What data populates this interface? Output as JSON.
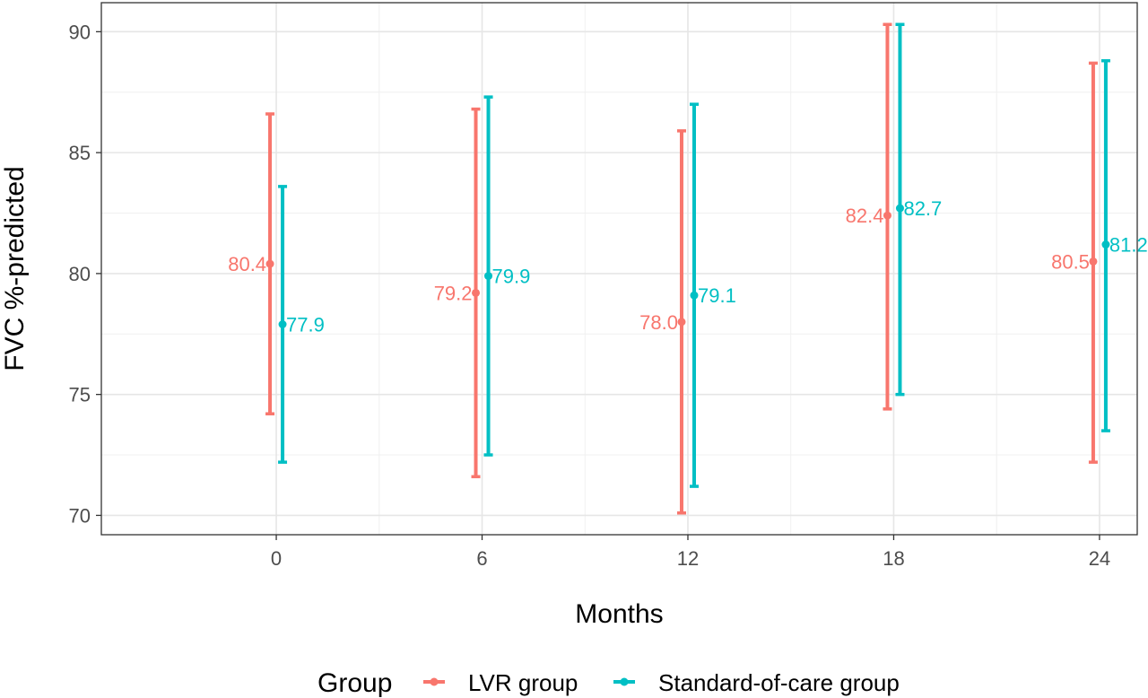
{
  "chart_data": {
    "type": "errorbar",
    "xlabel": "Months",
    "ylabel": "FVC %-predicted",
    "xlim": [
      -5.1,
      25.1
    ],
    "ylim": [
      69.2,
      91.2
    ],
    "x_ticks": [
      0,
      6,
      12,
      18,
      24
    ],
    "y_ticks": [
      70,
      75,
      80,
      85,
      90
    ],
    "grid": true,
    "legend": {
      "position": "bottom",
      "title": "Group"
    },
    "series": [
      {
        "name": "LVR group",
        "color": "#F8766D",
        "x": [
          0,
          6,
          12,
          18,
          24
        ],
        "y": [
          80.4,
          79.2,
          78.0,
          82.4,
          80.5
        ],
        "lower": [
          74.2,
          71.6,
          70.1,
          74.4,
          72.2
        ],
        "upper": [
          86.6,
          86.8,
          85.9,
          90.3,
          88.7
        ],
        "labels": [
          "80.4",
          "79.2",
          "78.0",
          "82.4",
          "80.5"
        ]
      },
      {
        "name": "Standard-of-care group",
        "color": "#00BFC4",
        "x": [
          0,
          6,
          12,
          18,
          24
        ],
        "y": [
          77.9,
          79.9,
          79.1,
          82.7,
          81.2
        ],
        "lower": [
          72.2,
          72.5,
          71.2,
          75.0,
          73.5
        ],
        "upper": [
          83.6,
          87.3,
          87.0,
          90.3,
          88.8
        ],
        "labels": [
          "77.9",
          "79.9",
          "79.1",
          "82.7",
          "81.2"
        ]
      }
    ]
  }
}
